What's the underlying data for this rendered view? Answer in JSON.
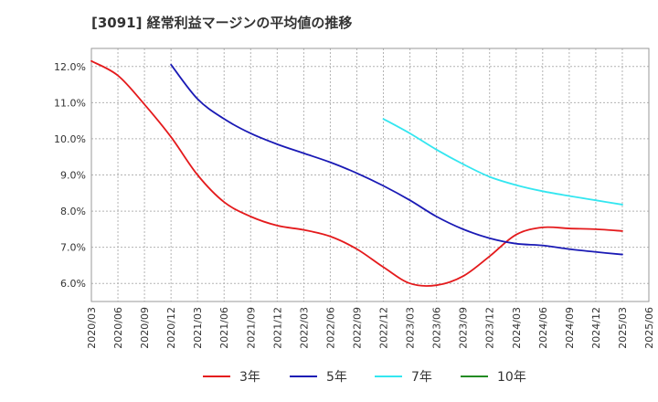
{
  "chart_data": {
    "type": "line",
    "title": "[3091]  経常利益マージンの平均値の推移",
    "xlabel": "",
    "ylabel": "",
    "x": [
      "2020/03",
      "2020/06",
      "2020/09",
      "2020/12",
      "2021/03",
      "2021/06",
      "2021/09",
      "2021/12",
      "2022/03",
      "2022/06",
      "2022/09",
      "2022/12",
      "2023/03",
      "2023/06",
      "2023/09",
      "2023/12",
      "2024/03",
      "2024/06",
      "2024/09",
      "2024/12",
      "2025/03",
      "2025/06"
    ],
    "ylim": [
      5.5,
      12.5
    ],
    "yticks": [
      6.0,
      7.0,
      8.0,
      9.0,
      10.0,
      11.0,
      12.0
    ],
    "ytick_labels": [
      "6.0%",
      "7.0%",
      "8.0%",
      "9.0%",
      "10.0%",
      "11.0%",
      "12.0%"
    ],
    "grid": true,
    "legend_position": "bottom",
    "series": [
      {
        "name": "3年",
        "color": "#e41a1c",
        "values": [
          12.15,
          11.75,
          10.95,
          10.05,
          9.0,
          8.25,
          7.85,
          7.6,
          7.48,
          7.3,
          6.95,
          6.45,
          6.0,
          5.95,
          6.2,
          6.75,
          7.35,
          7.55,
          7.52,
          7.5,
          7.45,
          null
        ]
      },
      {
        "name": "5年",
        "color": "#1a1ab5",
        "values": [
          null,
          null,
          null,
          12.05,
          11.1,
          10.55,
          10.15,
          9.85,
          9.6,
          9.35,
          9.05,
          8.7,
          8.3,
          7.85,
          7.5,
          7.25,
          7.1,
          7.05,
          6.95,
          6.87,
          6.8,
          null
        ]
      },
      {
        "name": "7年",
        "color": "#33e6f0",
        "values": [
          null,
          null,
          null,
          null,
          null,
          null,
          null,
          null,
          null,
          null,
          null,
          10.55,
          10.15,
          9.7,
          9.3,
          8.95,
          8.72,
          8.55,
          8.42,
          8.3,
          8.18,
          null
        ]
      },
      {
        "name": "10年",
        "color": "#228b22",
        "values": [
          null,
          null,
          null,
          null,
          null,
          null,
          null,
          null,
          null,
          null,
          null,
          null,
          null,
          null,
          null,
          null,
          null,
          null,
          null,
          null,
          null,
          null
        ]
      }
    ]
  }
}
